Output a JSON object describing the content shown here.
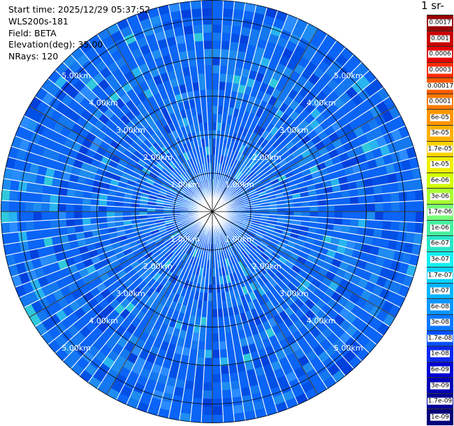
{
  "info": {
    "start_time": "Start time: 2025/12/29 05:37:52",
    "instrument": "WLS200s-181",
    "field": "Field: BETA",
    "elevation": "Elevation(deg): 35.00",
    "nrays": "NRays: 120"
  },
  "colorbar": {
    "title": "1 sr-",
    "labels": [
      "0.0017",
      "0.001",
      "0.0006",
      "0.0003",
      "0.00017",
      "0.0001",
      "6e-05",
      "3e-05",
      "1.7e-05",
      "1e-05",
      "6e-06",
      "3e-06",
      "1.7e-06",
      "1e-06",
      "6e-07",
      "3e-07",
      "1.7e-07",
      "1e-07",
      "6e-08",
      "3e-08",
      "1.7e-08",
      "1e-08",
      "6e-09",
      "3e-09",
      "1.7e-09",
      "1e-09"
    ],
    "colors": [
      "#960000",
      "#c80000",
      "#e60000",
      "#ff2a00",
      "#ff5a00",
      "#ff7800",
      "#ff9600",
      "#ffaf00",
      "#ffd200",
      "#f0f000",
      "#d2ff00",
      "#aaff32",
      "#78ff78",
      "#46f0a0",
      "#28e6c8",
      "#14f0f0",
      "#0ad2ff",
      "#00b4ff",
      "#0a96ff",
      "#0a78ff",
      "#0050ff",
      "#0a28f0",
      "#0000d2",
      "#0000b4",
      "#000096",
      "#000078"
    ]
  },
  "chart_data": {
    "type": "heatmap",
    "projection": "polar-ppi",
    "nrays": 120,
    "elevation_deg": 35.0,
    "range_max_km": 5.5,
    "range_rings_km": [
      1.0,
      2.0,
      3.0,
      4.0,
      5.0
    ],
    "ring_labels": [
      "1.00km",
      "2.00km",
      "3.00km",
      "4.00km",
      "5.00km"
    ],
    "field": "BETA",
    "value_range": [
      1e-09,
      0.0017
    ],
    "dominant_value": 2e-08,
    "scale": "log"
  }
}
